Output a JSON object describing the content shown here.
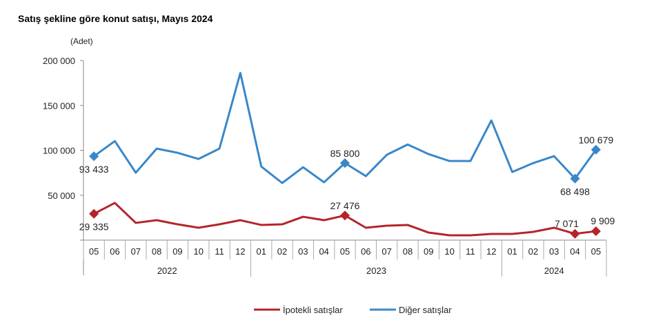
{
  "chart_data": {
    "type": "line",
    "title": "Satış şekline göre konut satışı, Mayıs 2024",
    "ylabel": "(Adet)",
    "xlabel": "",
    "ylim": [
      0,
      200000
    ],
    "yticks": [
      0,
      50000,
      100000,
      150000,
      200000
    ],
    "ytick_labels": [
      "",
      "50 000",
      "100 000",
      "150 000",
      "200 000"
    ],
    "categories": [
      "05",
      "06",
      "07",
      "08",
      "09",
      "10",
      "11",
      "12",
      "01",
      "02",
      "03",
      "04",
      "05",
      "06",
      "07",
      "08",
      "09",
      "10",
      "11",
      "12",
      "01",
      "02",
      "03",
      "04",
      "05"
    ],
    "year_groups": [
      {
        "label": "2022",
        "count": 8
      },
      {
        "label": "2023",
        "count": 12
      },
      {
        "label": "2024",
        "count": 5
      }
    ],
    "grid": false,
    "legend_position": "bottom",
    "series": [
      {
        "name": "İpotekli satışlar",
        "color": "#b5242a",
        "values": [
          29335,
          41400,
          19200,
          22200,
          17600,
          13800,
          17600,
          22200,
          16900,
          17600,
          26000,
          22200,
          27476,
          13800,
          16100,
          16900,
          8400,
          5400,
          5400,
          6900,
          6900,
          9200,
          13800,
          7071,
          9909
        ],
        "labels": [
          {
            "index": 0,
            "text": "29 335",
            "pos": "below"
          },
          {
            "index": 12,
            "text": "27 476",
            "pos": "above"
          },
          {
            "index": 23,
            "text": "7 071",
            "pos": "above-left"
          },
          {
            "index": 24,
            "text": "9 909",
            "pos": "above-right"
          }
        ]
      },
      {
        "name": "Diğer satışlar",
        "color": "#3a87c8",
        "values": [
          93433,
          110300,
          75100,
          101900,
          97300,
          90400,
          101900,
          186200,
          82000,
          63600,
          81200,
          64400,
          85800,
          71300,
          95000,
          106500,
          95800,
          88100,
          88100,
          133300,
          75900,
          85800,
          93500,
          68498,
          100679
        ],
        "labels": [
          {
            "index": 0,
            "text": "93 433",
            "pos": "below"
          },
          {
            "index": 12,
            "text": "85 800",
            "pos": "above"
          },
          {
            "index": 23,
            "text": "68 498",
            "pos": "below"
          },
          {
            "index": 24,
            "text": "100 679",
            "pos": "above"
          }
        ]
      }
    ]
  }
}
